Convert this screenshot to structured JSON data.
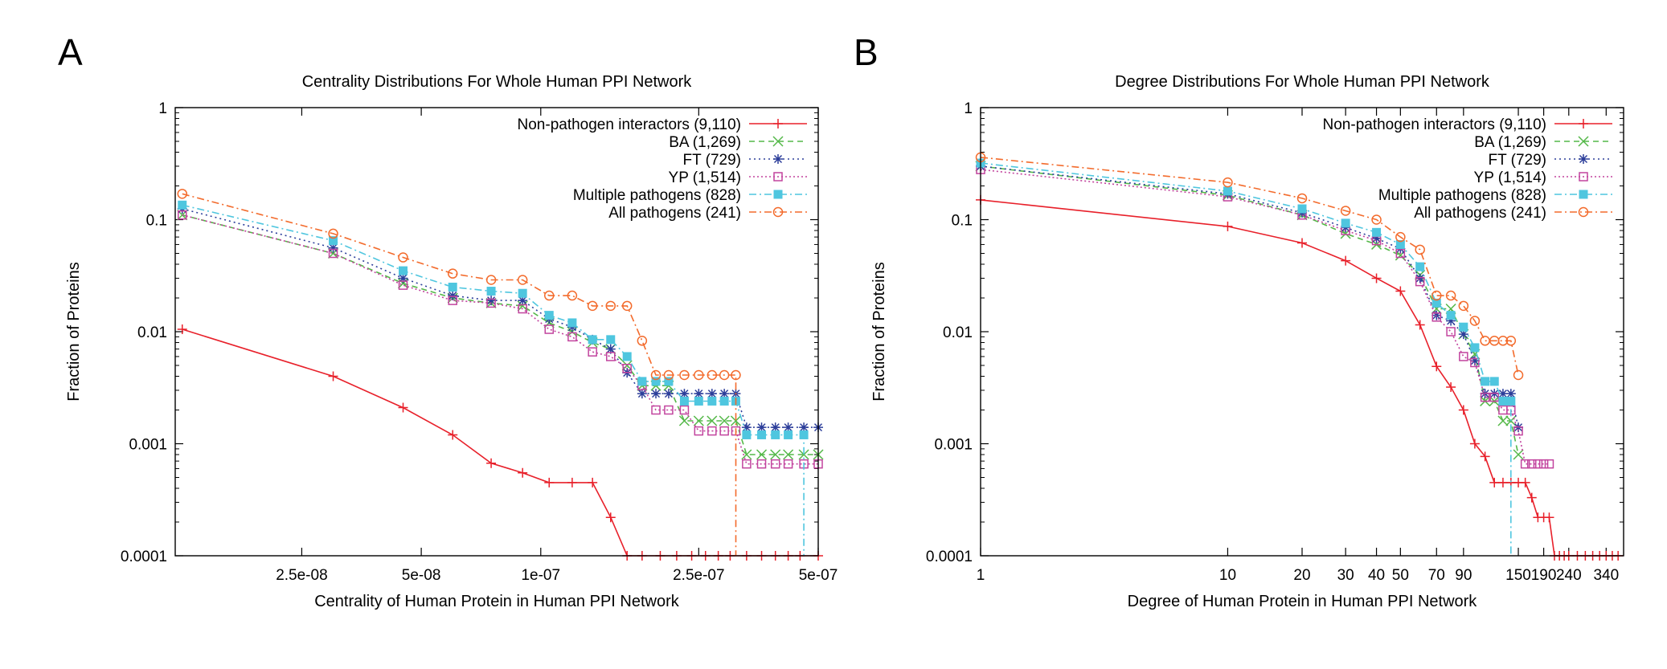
{
  "panels": [
    {
      "letter": "A",
      "chart_data": {
        "type": "line",
        "title": "Centrality Distributions For Whole Human PPI Network",
        "xlabel": "Centrality of Human Protein in Human PPI Network",
        "ylabel": "Fraction of Proteins",
        "xscale": "log",
        "yscale": "log",
        "xlim": [
          1.2e-08,
          5e-07
        ],
        "ylim": [
          0.0001,
          1
        ],
        "xticks": [
          {
            "value": 2.5e-08,
            "label": "2.5e-08"
          },
          {
            "value": 5e-08,
            "label": "5e-08"
          },
          {
            "value": 1e-07,
            "label": "1e-07"
          },
          {
            "value": 2.5e-07,
            "label": "2.5e-07"
          },
          {
            "value": 5e-07,
            "label": "5e-07"
          }
        ],
        "yticks": [
          {
            "value": 0.0001,
            "label": "0.0001"
          },
          {
            "value": 0.001,
            "label": "0.001"
          },
          {
            "value": 0.01,
            "label": "0.01"
          },
          {
            "value": 0.1,
            "label": "0.1"
          },
          {
            "value": 1,
            "label": "1"
          }
        ],
        "legend_position": "top-right",
        "series": [
          {
            "name": "Non-pathogen interactors (9,110)",
            "color": "#e8202a",
            "dash": "",
            "marker": "plus",
            "x": [
              1.25e-08,
              3e-08,
              4.5e-08,
              6e-08,
              7.5e-08,
              9e-08,
              1.05e-07,
              1.2e-07,
              1.35e-07,
              1.5e-07,
              1.65e-07,
              1.8e-07,
              2e-07,
              2.2e-07,
              2.4e-07,
              2.6e-07,
              2.8e-07,
              3e-07,
              3.3e-07,
              3.6e-07,
              3.9e-07,
              4.2e-07,
              4.5e-07,
              5e-07
            ],
            "y": [
              0.0105,
              0.004,
              0.0021,
              0.0012,
              0.00067,
              0.00055,
              0.00045,
              0.00045,
              0.00045,
              0.00022,
              0.0001,
              0.0001,
              0.0001,
              0.0001,
              0.0001,
              0.0001,
              0.0001,
              0.0001,
              0.0001,
              0.0001,
              0.0001,
              0.0001,
              0.0001,
              0.0001
            ]
          },
          {
            "name": "BA (1,269)",
            "color": "#54b848",
            "dash": "7,5",
            "marker": "cross",
            "x": [
              1.25e-08,
              3e-08,
              4.5e-08,
              6e-08,
              7.5e-08,
              9e-08,
              1.05e-07,
              1.2e-07,
              1.35e-07,
              1.5e-07,
              1.65e-07,
              1.8e-07,
              1.95e-07,
              2.1e-07,
              2.3e-07,
              2.5e-07,
              2.7e-07,
              2.9e-07,
              3.1e-07,
              3.3e-07,
              3.6e-07,
              3.9e-07,
              4.2e-07,
              4.6e-07,
              5e-07
            ],
            "y": [
              0.11,
              0.05,
              0.027,
              0.02,
              0.018,
              0.017,
              0.012,
              0.01,
              0.008,
              0.007,
              0.005,
              0.0033,
              0.0033,
              0.0033,
              0.0016,
              0.0016,
              0.0016,
              0.0016,
              0.0016,
              0.0008,
              0.0008,
              0.0008,
              0.0008,
              0.0008,
              0.0008
            ]
          },
          {
            "name": "FT (729)",
            "color": "#2c3e9a",
            "dash": "2,4",
            "marker": "star",
            "x": [
              1.25e-08,
              3e-08,
              4.5e-08,
              6e-08,
              7.5e-08,
              9e-08,
              1.05e-07,
              1.2e-07,
              1.35e-07,
              1.5e-07,
              1.65e-07,
              1.8e-07,
              1.95e-07,
              2.1e-07,
              2.3e-07,
              2.5e-07,
              2.7e-07,
              2.9e-07,
              3.1e-07,
              3.3e-07,
              3.6e-07,
              3.9e-07,
              4.2e-07,
              4.6e-07,
              5e-07
            ],
            "y": [
              0.125,
              0.056,
              0.03,
              0.021,
              0.019,
              0.019,
              0.013,
              0.011,
              0.0085,
              0.007,
              0.0043,
              0.0028,
              0.0028,
              0.0028,
              0.0028,
              0.0028,
              0.0028,
              0.0028,
              0.0028,
              0.0014,
              0.0014,
              0.0014,
              0.0014,
              0.0014,
              0.0014
            ]
          },
          {
            "name": "YP (1,514)",
            "color": "#c2449e",
            "dash": "2,3",
            "marker": "square-open",
            "x": [
              1.25e-08,
              3e-08,
              4.5e-08,
              6e-08,
              7.5e-08,
              9e-08,
              1.05e-07,
              1.2e-07,
              1.35e-07,
              1.5e-07,
              1.65e-07,
              1.8e-07,
              1.95e-07,
              2.1e-07,
              2.3e-07,
              2.5e-07,
              2.7e-07,
              2.9e-07,
              3.1e-07,
              3.3e-07,
              3.6e-07,
              3.9e-07,
              4.2e-07,
              4.6e-07,
              5e-07
            ],
            "y": [
              0.11,
              0.05,
              0.026,
              0.019,
              0.018,
              0.016,
              0.0105,
              0.009,
              0.0066,
              0.006,
              0.0047,
              0.0033,
              0.002,
              0.002,
              0.002,
              0.0013,
              0.0013,
              0.0013,
              0.0013,
              0.00066,
              0.00066,
              0.00066,
              0.00066,
              0.00066,
              0.00066
            ]
          },
          {
            "name": "Multiple pathogens (828)",
            "color": "#4fc6df",
            "dash": "9,4,2,4",
            "marker": "square-filled",
            "x": [
              1.25e-08,
              3e-08,
              4.5e-08,
              6e-08,
              7.5e-08,
              9e-08,
              1.05e-07,
              1.2e-07,
              1.35e-07,
              1.5e-07,
              1.65e-07,
              1.8e-07,
              1.95e-07,
              2.1e-07,
              2.3e-07,
              2.5e-07,
              2.7e-07,
              2.9e-07,
              3.1e-07,
              3.3e-07,
              3.6e-07,
              3.9e-07,
              4.2e-07,
              4.6e-07
            ],
            "y": [
              0.135,
              0.065,
              0.035,
              0.025,
              0.023,
              0.022,
              0.014,
              0.012,
              0.0085,
              0.0085,
              0.006,
              0.0036,
              0.0036,
              0.0036,
              0.0024,
              0.0024,
              0.0024,
              0.0024,
              0.0024,
              0.0012,
              0.0012,
              0.0012,
              0.0012,
              0.0012
            ],
            "drop_to_axis_after_last": true
          },
          {
            "name": "All pathogens (241)",
            "color": "#f36b2c",
            "dash": "9,4,2,4",
            "marker": "circle-open",
            "x": [
              1.25e-08,
              3e-08,
              4.5e-08,
              6e-08,
              7.5e-08,
              9e-08,
              1.05e-07,
              1.2e-07,
              1.35e-07,
              1.5e-07,
              1.65e-07,
              1.8e-07,
              1.95e-07,
              2.1e-07,
              2.3e-07,
              2.5e-07,
              2.7e-07,
              2.9e-07,
              3.1e-07
            ],
            "y": [
              0.17,
              0.075,
              0.046,
              0.033,
              0.029,
              0.029,
              0.021,
              0.021,
              0.017,
              0.017,
              0.017,
              0.0083,
              0.0041,
              0.0041,
              0.0041,
              0.0041,
              0.0041,
              0.0041,
              0.0041
            ],
            "drop_to_axis_after_last": true
          }
        ]
      }
    },
    {
      "letter": "B",
      "chart_data": {
        "type": "line",
        "title": "Degree Distributions For Whole Human PPI Network",
        "xlabel": "Degree of Human Protein in Human PPI Network",
        "ylabel": "Fraction of Proteins",
        "xscale": "log",
        "yscale": "log",
        "xlim": [
          1,
          400
        ],
        "ylim": [
          0.0001,
          1
        ],
        "xticks": [
          {
            "value": 1,
            "label": "1"
          },
          {
            "value": 10,
            "label": "10"
          },
          {
            "value": 20,
            "label": "20"
          },
          {
            "value": 30,
            "label": "30"
          },
          {
            "value": 40,
            "label": "40"
          },
          {
            "value": 50,
            "label": "50"
          },
          {
            "value": 70,
            "label": "70"
          },
          {
            "value": 90,
            "label": "90"
          },
          {
            "value": 150,
            "label": "150"
          },
          {
            "value": 190,
            "label": "190"
          },
          {
            "value": 240,
            "label": "240"
          },
          {
            "value": 340,
            "label": "340"
          }
        ],
        "yticks": [
          {
            "value": 0.0001,
            "label": "0.0001"
          },
          {
            "value": 0.001,
            "label": "0.001"
          },
          {
            "value": 0.01,
            "label": "0.01"
          },
          {
            "value": 0.1,
            "label": "0.1"
          },
          {
            "value": 1,
            "label": "1"
          }
        ],
        "legend_position": "top-right",
        "series": [
          {
            "name": "Non-pathogen interactors (9,110)",
            "color": "#e8202a",
            "dash": "",
            "marker": "plus",
            "x": [
              1,
              10,
              20,
              30,
              40,
              50,
              60,
              70,
              80,
              90,
              100,
              110,
              120,
              130,
              140,
              150,
              160,
              170,
              180,
              190,
              200,
              210,
              220,
              230,
              240,
              260,
              280,
              300,
              320,
              340,
              360,
              380
            ],
            "y": [
              0.15,
              0.087,
              0.062,
              0.043,
              0.03,
              0.023,
              0.0115,
              0.0049,
              0.0032,
              0.002,
              0.001,
              0.00077,
              0.00045,
              0.00045,
              0.00045,
              0.00045,
              0.00045,
              0.00033,
              0.00022,
              0.00022,
              0.00022,
              0.0001,
              0.0001,
              0.0001,
              0.0001,
              0.0001,
              0.0001,
              0.0001,
              0.0001,
              0.0001,
              0.0001,
              0.0001
            ]
          },
          {
            "name": "BA (1,269)",
            "color": "#54b848",
            "dash": "7,5",
            "marker": "cross",
            "x": [
              1,
              10,
              20,
              30,
              40,
              50,
              60,
              70,
              80,
              90,
              100,
              110,
              120,
              130,
              140,
              150
            ],
            "y": [
              0.3,
              0.165,
              0.11,
              0.075,
              0.06,
              0.048,
              0.032,
              0.016,
              0.016,
              0.0095,
              0.0063,
              0.0024,
              0.0024,
              0.0016,
              0.0016,
              0.0008
            ]
          },
          {
            "name": "FT (729)",
            "color": "#2c3e9a",
            "dash": "2,4",
            "marker": "star",
            "x": [
              1,
              10,
              20,
              30,
              40,
              50,
              60,
              70,
              80,
              90,
              100,
              110,
              120,
              130,
              140,
              150
            ],
            "y": [
              0.3,
              0.17,
              0.115,
              0.085,
              0.068,
              0.055,
              0.03,
              0.014,
              0.0125,
              0.0095,
              0.0055,
              0.0028,
              0.0028,
              0.0028,
              0.0028,
              0.0014
            ]
          },
          {
            "name": "YP (1,514)",
            "color": "#c2449e",
            "dash": "2,3",
            "marker": "square-open",
            "x": [
              1,
              10,
              20,
              30,
              40,
              50,
              60,
              70,
              80,
              90,
              100,
              110,
              120,
              130,
              140,
              150,
              160,
              170,
              180,
              190,
              200
            ],
            "y": [
              0.28,
              0.16,
              0.11,
              0.08,
              0.065,
              0.05,
              0.028,
              0.0135,
              0.01,
              0.006,
              0.0053,
              0.0026,
              0.0026,
              0.002,
              0.002,
              0.0013,
              0.00066,
              0.00066,
              0.00066,
              0.00066,
              0.00066
            ]
          },
          {
            "name": "Multiple pathogens (828)",
            "color": "#4fc6df",
            "dash": "9,4,2,4",
            "marker": "square-filled",
            "x": [
              1,
              10,
              20,
              30,
              40,
              50,
              60,
              70,
              80,
              90,
              100,
              110,
              120,
              130,
              140
            ],
            "y": [
              0.32,
              0.18,
              0.125,
              0.093,
              0.077,
              0.06,
              0.038,
              0.018,
              0.014,
              0.011,
              0.0072,
              0.0036,
              0.0036,
              0.0024,
              0.0024
            ],
            "drop_to_axis_after_last": true
          },
          {
            "name": "All pathogens (241)",
            "color": "#f36b2c",
            "dash": "9,4,2,4",
            "marker": "circle-open",
            "x": [
              1,
              10,
              20,
              30,
              40,
              50,
              60,
              70,
              80,
              90,
              100,
              110,
              120,
              130,
              140,
              150
            ],
            "y": [
              0.36,
              0.215,
              0.155,
              0.12,
              0.1,
              0.07,
              0.054,
              0.021,
              0.021,
              0.017,
              0.0125,
              0.0083,
              0.0083,
              0.0083,
              0.0083,
              0.0041
            ]
          }
        ]
      }
    }
  ]
}
